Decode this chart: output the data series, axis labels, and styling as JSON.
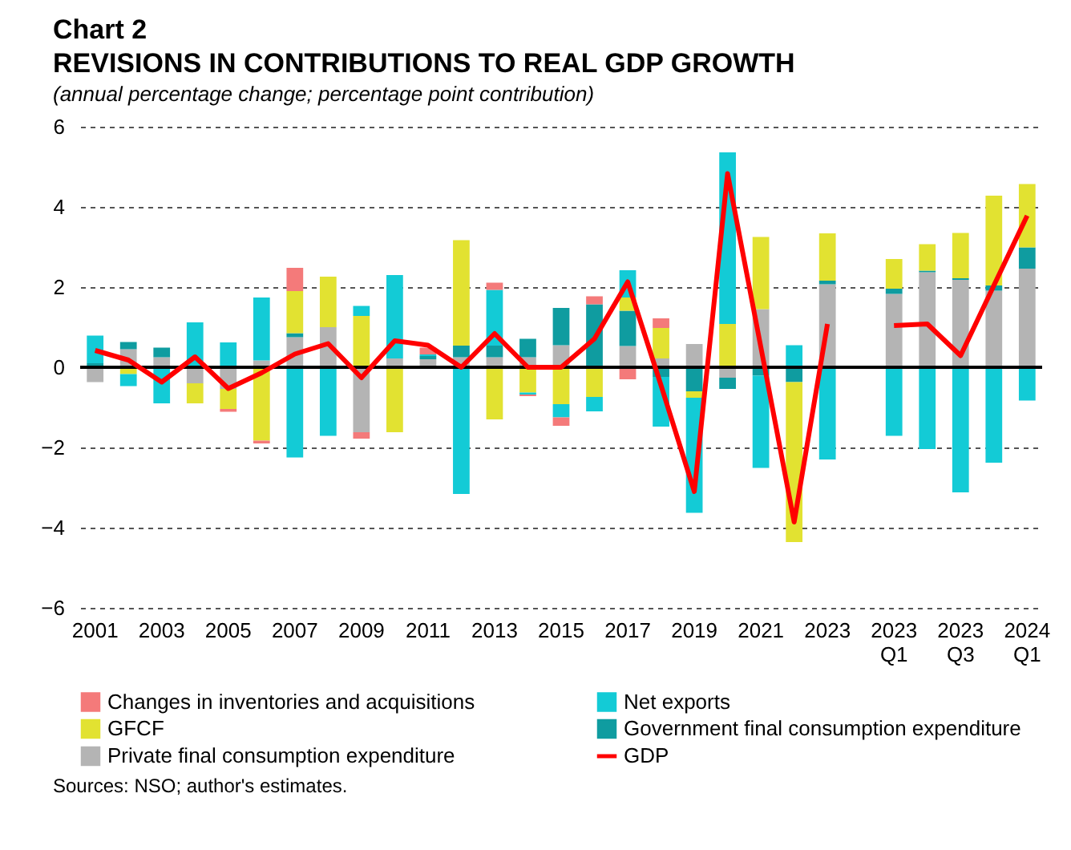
{
  "chart_data": {
    "type": "bar",
    "title": "REVISIONS IN CONTRIBUTIONS TO REAL GDP GROWTH",
    "subtitle": "(annual percentage change; percentage point contribution)",
    "annotations": [
      "Chart 2",
      "Sources: NSO; author's estimates."
    ],
    "categories": [
      "2001",
      null,
      "2003",
      null,
      "2005",
      null,
      "2007",
      null,
      "2009",
      null,
      "2011",
      null,
      "2013",
      null,
      "2015",
      null,
      "2017",
      null,
      "2019",
      null,
      "2021",
      null,
      "2023",
      null,
      "2023 Q1",
      null,
      "2023 Q3",
      null,
      "2024 Q1"
    ],
    "stacked": true,
    "series": [
      {
        "name": "Private final consumption expenditure",
        "color": "#b4b4b4",
        "values": [
          -0.37,
          0.45,
          0.25,
          -0.4,
          -0.54,
          0.17,
          0.75,
          1.0,
          -1.62,
          0.22,
          0.2,
          0.25,
          0.25,
          0.25,
          0.55,
          null,
          0.53,
          0.22,
          0.58,
          -0.26,
          1.45,
          null,
          2.07,
          null,
          1.83,
          2.37,
          2.18,
          1.91,
          2.46
        ]
      },
      {
        "name": "Government final consumption expenditure",
        "color": "#0f9ca0",
        "values": [
          0.1,
          0.18,
          0.24,
          null,
          null,
          null,
          0.1,
          null,
          null,
          null,
          0.08,
          0.29,
          0.29,
          0.46,
          0.93,
          1.57,
          0.88,
          -0.24,
          -0.6,
          -0.28,
          -0.21,
          -0.37,
          0.09,
          null,
          0.13,
          0.04,
          0.04,
          0.13,
          0.53
        ]
      },
      {
        "name": "GFCF",
        "color": "#e2e231",
        "values": [
          null,
          -0.17,
          null,
          -0.5,
          -0.5,
          -1.83,
          1.05,
          1.26,
          1.28,
          -1.62,
          null,
          2.63,
          -1.3,
          -0.63,
          -0.92,
          -0.74,
          0.33,
          0.76,
          -0.16,
          1.08,
          1.8,
          -3.99,
          1.18,
          null,
          0.74,
          0.66,
          1.13,
          2.24,
          1.58
        ]
      },
      {
        "name": "Net exports",
        "color": "#13cbd6",
        "values": [
          0.69,
          -0.3,
          -0.9,
          1.12,
          0.62,
          1.57,
          -2.25,
          -1.71,
          0.25,
          2.08,
          0.04,
          -3.16,
          1.39,
          -0.05,
          -0.33,
          -0.36,
          0.68,
          -1.24,
          -2.87,
          4.28,
          -2.3,
          0.55,
          -2.3,
          null,
          -1.71,
          -2.04,
          -3.12,
          -2.38,
          -0.83
        ]
      },
      {
        "name": "Changes in inventories and acquisitions",
        "color": "#f47a7a",
        "values": [
          null,
          null,
          null,
          null,
          -0.07,
          -0.07,
          0.58,
          null,
          -0.16,
          null,
          0.17,
          null,
          0.18,
          -0.04,
          -0.21,
          0.2,
          -0.3,
          0.24,
          null,
          null,
          null,
          null,
          null,
          null,
          null,
          null,
          null,
          null,
          null
        ]
      },
      {
        "name": "GDP",
        "type": "line",
        "color": "#ff0000",
        "values": [
          0.42,
          0.18,
          -0.37,
          0.26,
          -0.53,
          -0.14,
          0.33,
          0.59,
          -0.26,
          0.66,
          0.55,
          0.0,
          0.84,
          0.0,
          0.0,
          0.71,
          2.13,
          -0.45,
          -3.1,
          4.83,
          0.5,
          -3.86,
          1.08,
          null,
          1.04,
          1.08,
          0.29,
          2.04,
          3.78
        ]
      }
    ],
    "ylim": [
      -6,
      6
    ],
    "yticks": [
      -6,
      -4,
      -2,
      0,
      2,
      4,
      6
    ],
    "ref_lines": [
      {
        "axis": "y",
        "value": 0,
        "color": "#000000"
      }
    ],
    "grid": "y",
    "legend": "bottom"
  }
}
